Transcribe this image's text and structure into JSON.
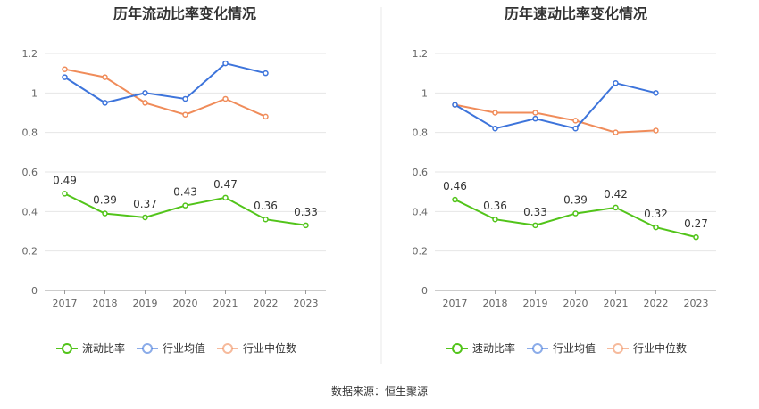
{
  "source": "数据来源：恒生聚源",
  "colors": {
    "company": "#52c41a",
    "avg": "#3d74db",
    "median": "#f08c5a"
  },
  "chart_data": [
    {
      "type": "line",
      "title": "历年流动比率变化情况",
      "categories": [
        "2017",
        "2018",
        "2019",
        "2020",
        "2021",
        "2022",
        "2023"
      ],
      "ylim": [
        0,
        1.2
      ],
      "yticks": [
        "0",
        "0.2",
        "0.4",
        "0.6",
        "0.8",
        "1",
        "1.2"
      ],
      "grid": true,
      "legend_position": "bottom",
      "series": [
        {
          "name": "流动比率",
          "values": [
            0.49,
            0.39,
            0.37,
            0.43,
            0.47,
            0.36,
            0.33
          ],
          "labels": [
            "0.49",
            "0.39",
            "0.37",
            "0.43",
            "0.47",
            "0.36",
            "0.33"
          ]
        },
        {
          "name": "行业均值",
          "values": [
            1.08,
            0.95,
            1.0,
            0.97,
            1.15,
            1.1,
            null
          ]
        },
        {
          "name": "行业中位数",
          "values": [
            1.12,
            1.08,
            0.95,
            0.89,
            0.97,
            0.88,
            null
          ]
        }
      ]
    },
    {
      "type": "line",
      "title": "历年速动比率变化情况",
      "categories": [
        "2017",
        "2018",
        "2019",
        "2020",
        "2021",
        "2022",
        "2023"
      ],
      "ylim": [
        0,
        1.2
      ],
      "yticks": [
        "0",
        "0.2",
        "0.4",
        "0.6",
        "0.8",
        "1",
        "1.2"
      ],
      "grid": true,
      "legend_position": "bottom",
      "series": [
        {
          "name": "速动比率",
          "values": [
            0.46,
            0.36,
            0.33,
            0.39,
            0.42,
            0.32,
            0.27
          ],
          "labels": [
            "0.46",
            "0.36",
            "0.33",
            "0.39",
            "0.42",
            "0.32",
            "0.27"
          ]
        },
        {
          "name": "行业均值",
          "values": [
            0.94,
            0.82,
            0.87,
            0.82,
            1.05,
            1.0,
            null
          ]
        },
        {
          "name": "行业中位数",
          "values": [
            0.94,
            0.9,
            0.9,
            0.86,
            0.8,
            0.81,
            null
          ]
        }
      ]
    }
  ]
}
